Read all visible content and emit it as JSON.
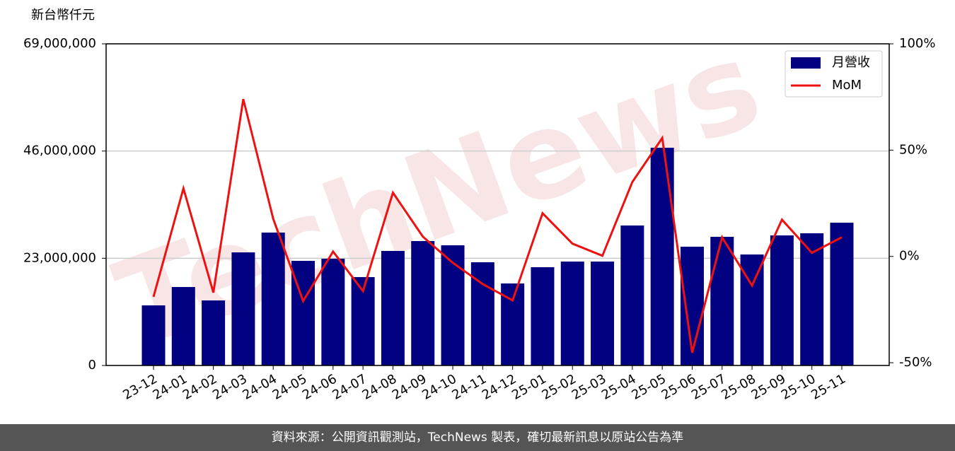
{
  "chart_data": {
    "type": "bar",
    "watermark": "TechNews",
    "ylabel": "新台幣仟元",
    "categories": [
      "23-12",
      "24-01",
      "24-02",
      "24-03",
      "24-04",
      "24-05",
      "24-06",
      "24-07",
      "24-08",
      "24-09",
      "24-10",
      "24-11",
      "24-12",
      "25-01",
      "25-02",
      "25-03",
      "25-04",
      "25-05",
      "25-06",
      "25-07",
      "25-08",
      "25-09",
      "25-10",
      "25-11"
    ],
    "series": [
      {
        "name": "月營收",
        "type": "bar",
        "color": "#000080",
        "values": [
          12890000,
          16830000,
          13950000,
          24260000,
          28510000,
          22440000,
          22900000,
          18960000,
          24570000,
          26690000,
          25780000,
          22140000,
          17590000,
          21080000,
          22290000,
          22290000,
          30030000,
          46710000,
          25480000,
          27600000,
          23810000,
          27900000,
          28360000,
          30630000
        ]
      },
      {
        "name": "MoM",
        "type": "line",
        "axis": "y2",
        "color": "#ee1111",
        "values": [
          -19,
          32,
          -17,
          74,
          17.7,
          -21,
          2.3,
          -16.3,
          30,
          9.3,
          -3,
          -13,
          -20.7,
          20.3,
          6,
          0.3,
          35,
          55.7,
          -45.3,
          9,
          -13.7,
          17.3,
          1.7,
          9
        ]
      }
    ],
    "ylim": [
      0,
      69000000
    ],
    "yticks": [
      {
        "value": 0,
        "label": "0"
      },
      {
        "value": 23000000,
        "label": "23,000,000"
      },
      {
        "value": 46000000,
        "label": "46,000,000"
      },
      {
        "value": 69000000,
        "label": "69,000,000"
      }
    ],
    "y2lim": [
      -51.3,
      100
    ],
    "y2ticks": [
      {
        "value": -50,
        "label": "-50%"
      },
      {
        "value": 0,
        "label": "0%"
      },
      {
        "value": 50,
        "label": "50%"
      },
      {
        "value": 100,
        "label": "100%"
      }
    ],
    "grid": true,
    "legend": "upper right",
    "source": "資料來源：公開資訊觀測站，TechNews 製表，確切最新訊息以原站公告為準"
  }
}
